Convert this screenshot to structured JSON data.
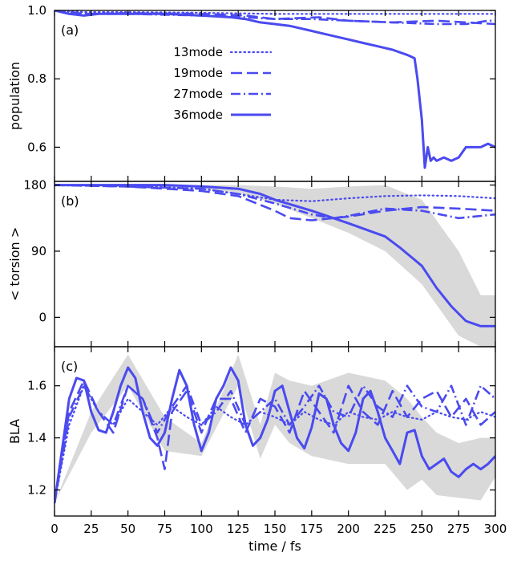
{
  "chart_data": {
    "type": "line",
    "x_axis": {
      "label": "time / fs",
      "ticks": [
        0,
        25,
        50,
        75,
        100,
        125,
        150,
        175,
        200,
        225,
        250,
        275,
        300
      ],
      "lim": [
        0,
        300
      ]
    },
    "colors": {
      "series": "#4a4af0",
      "band": "#d9d9d9",
      "axis": "#000000"
    },
    "legend": {
      "placement": "panel-a-center",
      "entries": [
        {
          "label": "13mode",
          "dash": "dotted"
        },
        {
          "label": "19mode",
          "dash": "dashed"
        },
        {
          "label": "27mode",
          "dash": "dash-dot"
        },
        {
          "label": "36mode",
          "dash": "solid"
        }
      ]
    },
    "panels": [
      {
        "id": "a",
        "panel_label": "(a)",
        "ylabel": "population",
        "ylim": [
          0.5,
          1.0
        ],
        "yticks": [
          {
            "v": 0.6,
            "t": "0.6"
          },
          {
            "v": 0.8,
            "t": "0.8"
          },
          {
            "v": 1.0,
            "t": "1.0"
          }
        ],
        "series": [
          {
            "name": "13mode",
            "dash": "dotted",
            "x": [
              0,
              20,
              50,
              100,
              150,
              200,
              250,
              300
            ],
            "y": [
              1.0,
              0.995,
              0.995,
              0.993,
              0.99,
              0.99,
              0.99,
              0.99
            ]
          },
          {
            "name": "19mode",
            "dash": "dashed",
            "x": [
              0,
              20,
              50,
              100,
              130,
              150,
              180,
              200,
              230,
              260,
              280,
              300
            ],
            "y": [
              1.0,
              0.99,
              0.992,
              0.99,
              0.985,
              0.975,
              0.98,
              0.97,
              0.965,
              0.97,
              0.965,
              0.96
            ]
          },
          {
            "name": "27mode",
            "dash": "dash-dot",
            "x": [
              0,
              20,
              50,
              100,
              130,
              150,
              175,
              200,
              230,
              260,
              280,
              295,
              300
            ],
            "y": [
              1.0,
              0.99,
              0.99,
              0.985,
              0.98,
              0.975,
              0.975,
              0.97,
              0.965,
              0.96,
              0.96,
              0.97,
              0.97
            ]
          },
          {
            "name": "36mode",
            "dash": "solid",
            "x": [
              0,
              10,
              20,
              30,
              50,
              75,
              100,
              120,
              130,
              140,
              150,
              160,
              170,
              180,
              190,
              200,
              210,
              220,
              230,
              240,
              245,
              247,
              250,
              252,
              254,
              256,
              258,
              260,
              265,
              270,
              275,
              280,
              290,
              295,
              300
            ],
            "y": [
              1.0,
              0.99,
              0.985,
              0.99,
              0.99,
              0.99,
              0.985,
              0.98,
              0.975,
              0.965,
              0.96,
              0.955,
              0.945,
              0.935,
              0.925,
              0.915,
              0.905,
              0.895,
              0.885,
              0.87,
              0.86,
              0.8,
              0.68,
              0.54,
              0.6,
              0.56,
              0.57,
              0.56,
              0.57,
              0.56,
              0.57,
              0.6,
              0.6,
              0.61,
              0.6
            ]
          }
        ]
      },
      {
        "id": "b",
        "panel_label": "(b)",
        "ylabel": "< torsion >",
        "ylim": [
          -40,
          185
        ],
        "yticks": [
          {
            "v": 0,
            "t": "0"
          },
          {
            "v": 90,
            "t": "90"
          },
          {
            "v": 180,
            "t": "180"
          }
        ],
        "band": {
          "x": [
            0,
            50,
            100,
            125,
            150,
            175,
            200,
            225,
            250,
            275,
            290,
            300
          ],
          "lower": [
            180,
            178,
            175,
            170,
            155,
            135,
            115,
            90,
            45,
            -25,
            -40,
            -40
          ],
          "upper": [
            180,
            181,
            180,
            180,
            178,
            175,
            178,
            180,
            160,
            90,
            30,
            30
          ]
        },
        "series": [
          {
            "name": "13mode",
            "dash": "dotted",
            "x": [
              0,
              50,
              100,
              125,
              150,
              175,
              200,
              225,
              250,
              275,
              300
            ],
            "y": [
              180,
              179,
              175,
              168,
              160,
              158,
              162,
              165,
              166,
              165,
              162
            ]
          },
          {
            "name": "19mode",
            "dash": "dashed",
            "x": [
              0,
              50,
              100,
              125,
              150,
              160,
              175,
              200,
              225,
              250,
              275,
              300
            ],
            "y": [
              180,
              178,
              172,
              165,
              145,
              135,
              132,
              137,
              145,
              150,
              148,
              145
            ]
          },
          {
            "name": "27mode",
            "dash": "dash-dot",
            "x": [
              0,
              50,
              100,
              125,
              150,
              175,
              190,
              200,
              225,
              250,
              275,
              300
            ],
            "y": [
              180,
              178,
              175,
              168,
              155,
              140,
              135,
              138,
              148,
              145,
              135,
              140
            ]
          },
          {
            "name": "36mode",
            "dash": "solid",
            "x": [
              0,
              25,
              50,
              75,
              100,
              125,
              140,
              150,
              175,
              200,
              225,
              235,
              250,
              260,
              270,
              280,
              290,
              300
            ],
            "y": [
              180,
              180,
              180,
              180,
              178,
              175,
              168,
              160,
              145,
              128,
              110,
              95,
              70,
              40,
              15,
              -5,
              -12,
              -12
            ]
          }
        ]
      },
      {
        "id": "c",
        "panel_label": "(c)",
        "ylabel": "BLA",
        "ylim": [
          1.1,
          1.75
        ],
        "yticks": [
          {
            "v": 1.2,
            "t": "1.2"
          },
          {
            "v": 1.4,
            "t": "1.4"
          },
          {
            "v": 1.6,
            "t": "1.6"
          }
        ],
        "series": [
          {
            "name": "13mode",
            "dash": "dotted",
            "x": [
              0,
              10,
              20,
              30,
              40,
              50,
              60,
              70,
              80,
              90,
              100,
              110,
              120,
              130,
              140,
              150,
              160,
              170,
              180,
              190,
              200,
              210,
              220,
              230,
              240,
              250,
              260,
              270,
              280,
              290,
              300
            ],
            "y": [
              1.15,
              1.45,
              1.6,
              1.5,
              1.45,
              1.55,
              1.5,
              1.45,
              1.52,
              1.48,
              1.45,
              1.52,
              1.48,
              1.45,
              1.5,
              1.48,
              1.45,
              1.5,
              1.47,
              1.45,
              1.5,
              1.48,
              1.47,
              1.5,
              1.48,
              1.47,
              1.5,
              1.48,
              1.47,
              1.5,
              1.48
            ]
          },
          {
            "name": "19mode",
            "dash": "dashed",
            "x": [
              0,
              10,
              20,
              30,
              40,
              50,
              60,
              70,
              75,
              80,
              90,
              100,
              110,
              120,
              130,
              140,
              150,
              160,
              170,
              180,
              190,
              200,
              210,
              220,
              230,
              240,
              250,
              260,
              270,
              280,
              290,
              300
            ],
            "y": [
              1.15,
              1.5,
              1.62,
              1.5,
              1.42,
              1.6,
              1.55,
              1.4,
              1.28,
              1.5,
              1.58,
              1.42,
              1.55,
              1.55,
              1.42,
              1.55,
              1.52,
              1.42,
              1.58,
              1.5,
              1.42,
              1.6,
              1.5,
              1.45,
              1.58,
              1.48,
              1.55,
              1.58,
              1.48,
              1.55,
              1.45,
              1.5
            ]
          },
          {
            "name": "27mode",
            "dash": "dash-dot",
            "x": [
              0,
              10,
              20,
              30,
              40,
              50,
              60,
              70,
              80,
              90,
              100,
              110,
              120,
              130,
              140,
              150,
              160,
              170,
              180,
              190,
              200,
              210,
              220,
              230,
              240,
              250,
              260,
              270,
              280,
              290,
              300
            ],
            "y": [
              1.15,
              1.48,
              1.6,
              1.5,
              1.45,
              1.6,
              1.55,
              1.42,
              1.52,
              1.6,
              1.45,
              1.5,
              1.58,
              1.45,
              1.5,
              1.55,
              1.45,
              1.52,
              1.6,
              1.5,
              1.48,
              1.6,
              1.52,
              1.48,
              1.6,
              1.52,
              1.5,
              1.6,
              1.45,
              1.6,
              1.55
            ]
          },
          {
            "name": "36mode",
            "dash": "solid",
            "x": [
              0,
              5,
              10,
              15,
              20,
              25,
              30,
              35,
              40,
              45,
              50,
              55,
              60,
              65,
              70,
              75,
              80,
              85,
              90,
              95,
              100,
              105,
              110,
              115,
              120,
              125,
              130,
              135,
              140,
              145,
              150,
              155,
              160,
              165,
              170,
              175,
              180,
              185,
              190,
              195,
              200,
              205,
              210,
              215,
              220,
              225,
              230,
              235,
              240,
              245,
              250,
              255,
              260,
              265,
              270,
              275,
              280,
              285,
              290,
              295,
              300
            ],
            "y": [
              1.15,
              1.35,
              1.55,
              1.63,
              1.62,
              1.5,
              1.43,
              1.42,
              1.5,
              1.6,
              1.67,
              1.63,
              1.5,
              1.4,
              1.37,
              1.42,
              1.55,
              1.66,
              1.6,
              1.45,
              1.35,
              1.42,
              1.55,
              1.6,
              1.67,
              1.62,
              1.45,
              1.37,
              1.4,
              1.47,
              1.58,
              1.6,
              1.5,
              1.4,
              1.36,
              1.44,
              1.57,
              1.55,
              1.45,
              1.38,
              1.35,
              1.42,
              1.55,
              1.58,
              1.5,
              1.4,
              1.35,
              1.3,
              1.42,
              1.43,
              1.33,
              1.28,
              1.3,
              1.32,
              1.27,
              1.25,
              1.28,
              1.3,
              1.28,
              1.3,
              1.33
            ]
          }
        ],
        "band": {
          "x": [
            0,
            25,
            50,
            75,
            100,
            125,
            140,
            150,
            160,
            175,
            200,
            225,
            240,
            250,
            260,
            275,
            290,
            300
          ],
          "lower": [
            1.15,
            1.42,
            1.6,
            1.35,
            1.33,
            1.6,
            1.32,
            1.45,
            1.38,
            1.33,
            1.3,
            1.3,
            1.2,
            1.24,
            1.18,
            1.17,
            1.16,
            1.25
          ],
          "upper": [
            1.15,
            1.5,
            1.72,
            1.48,
            1.38,
            1.72,
            1.45,
            1.65,
            1.62,
            1.6,
            1.65,
            1.62,
            1.55,
            1.48,
            1.42,
            1.38,
            1.4,
            1.4
          ]
        }
      }
    ]
  }
}
